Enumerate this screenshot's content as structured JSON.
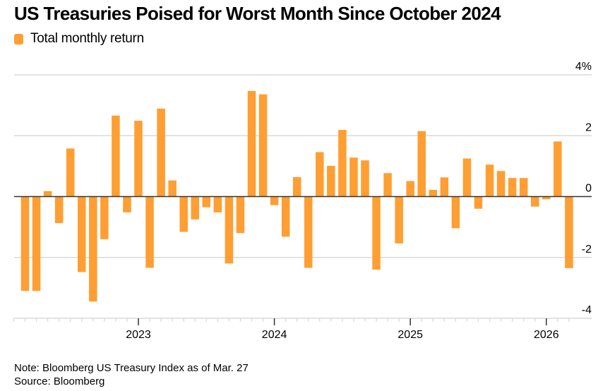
{
  "title": "US Treasuries Poised for Worst Month Since October 2024",
  "legend": [
    {
      "label": "Total monthly return",
      "color": "#ff9e32"
    }
  ],
  "note": "Note: Bloomberg US Treasury Index as of Mar. 27",
  "source": "Source: Bloomberg",
  "colors": {
    "bar": "#ff9e32",
    "grid": "#d9d9d9",
    "zero_line": "#333333",
    "text": "#000000"
  },
  "chart_data": {
    "type": "bar",
    "title": "US Treasuries Poised for Worst Month Since October 2024",
    "xlabel": "",
    "ylabel": "",
    "ylim": [
      -4,
      4
    ],
    "yticks": [
      4,
      2,
      0,
      -2,
      -4
    ],
    "ytick_labels": [
      "4%",
      "2",
      "0",
      "-2",
      "-4"
    ],
    "xtick_labels": [
      "2023",
      "2024",
      "2025",
      "2026"
    ],
    "xtick_index": [
      10,
      22,
      34,
      46
    ],
    "grid": true,
    "legend_position": "top-left",
    "y_axis_side": "right",
    "categories": [
      "2022-03",
      "2022-04",
      "2022-05",
      "2022-06",
      "2022-07",
      "2022-08",
      "2022-09",
      "2022-10",
      "2022-11",
      "2022-12",
      "2023-01",
      "2023-02",
      "2023-03",
      "2023-04",
      "2023-05",
      "2023-06",
      "2023-07",
      "2023-08",
      "2023-09",
      "2023-10",
      "2023-11",
      "2023-12",
      "2024-01",
      "2024-02",
      "2024-03",
      "2024-04",
      "2024-05",
      "2024-06",
      "2024-07",
      "2024-08",
      "2024-09",
      "2024-10",
      "2024-11",
      "2024-12",
      "2025-01",
      "2025-02",
      "2025-03",
      "2025-04",
      "2025-05",
      "2025-06",
      "2025-07",
      "2025-08",
      "2025-09",
      "2025-10",
      "2025-11",
      "2025-12",
      "2026-01",
      "2026-02",
      "2026-03"
    ],
    "series": [
      {
        "name": "Total monthly return",
        "values": [
          -3.1,
          -3.1,
          0.18,
          -0.87,
          1.58,
          -2.48,
          -3.45,
          -1.4,
          2.66,
          -0.52,
          2.49,
          -2.34,
          2.89,
          0.53,
          -1.16,
          -0.75,
          -0.35,
          -0.52,
          -2.2,
          -1.2,
          3.47,
          3.36,
          -0.28,
          -1.32,
          0.64,
          -2.34,
          1.46,
          1.01,
          2.19,
          1.28,
          1.19,
          -2.4,
          0.77,
          -1.54,
          0.51,
          2.15,
          0.22,
          0.63,
          -1.04,
          1.25,
          -0.4,
          1.05,
          0.84,
          0.61,
          0.61,
          -0.33,
          -0.09,
          1.81,
          -2.35
        ]
      }
    ]
  }
}
